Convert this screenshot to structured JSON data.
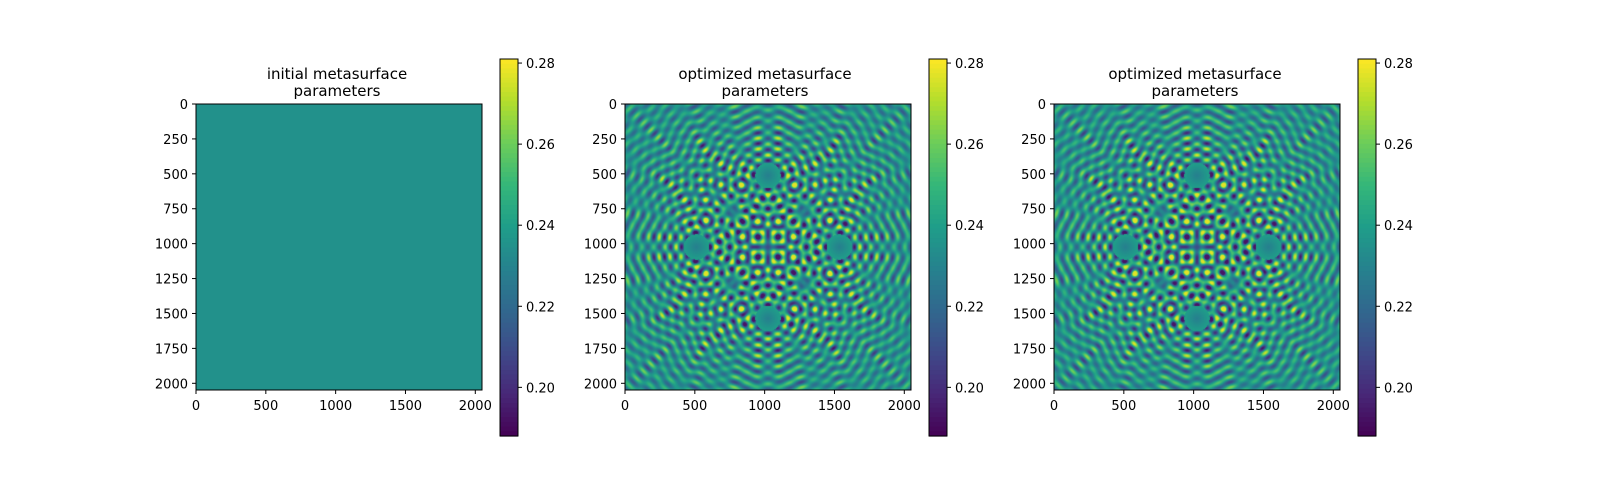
{
  "chart_data": [
    {
      "type": "heatmap",
      "title": "initial metasurface\nparameters",
      "xlabel": "",
      "ylabel": "",
      "xticks": [
        "0",
        "500",
        "1000",
        "1500",
        "2000"
      ],
      "yticks": [
        "0",
        "250",
        "500",
        "750",
        "1000",
        "1250",
        "1500",
        "1750",
        "2000"
      ],
      "xlim": [
        0,
        2048
      ],
      "ylim": [
        2048,
        0
      ],
      "colormap": "viridis",
      "colorbar": {
        "ticks": [
          "0.20",
          "0.22",
          "0.24",
          "0.26",
          "0.28"
        ],
        "range": [
          0.188,
          0.281
        ]
      },
      "pattern": "uniform",
      "uniform_value": 0.235
    },
    {
      "type": "heatmap",
      "title": "optimized metasurface\nparameters",
      "xlabel": "",
      "ylabel": "",
      "xticks": [
        "0",
        "500",
        "1000",
        "1500",
        "2000"
      ],
      "yticks": [
        "0",
        "250",
        "500",
        "750",
        "1000",
        "1250",
        "1500",
        "1750",
        "2000"
      ],
      "xlim": [
        0,
        2048
      ],
      "ylim": [
        2048,
        0
      ],
      "colormap": "viridis",
      "colorbar": {
        "ticks": [
          "0.20",
          "0.22",
          "0.24",
          "0.26",
          "0.28"
        ],
        "range": [
          0.188,
          0.281
        ]
      },
      "pattern": "concentric rings",
      "ring_centers": [
        [
          1024,
          512
        ],
        [
          512,
          1024
        ],
        [
          1536,
          1024
        ],
        [
          1024,
          1536
        ],
        [
          1024,
          1024
        ],
        [
          768,
          768
        ],
        [
          1280,
          768
        ],
        [
          768,
          1280
        ],
        [
          1280,
          1280
        ]
      ]
    },
    {
      "type": "heatmap",
      "title": "optimized metasurface\nparameters",
      "xlabel": "",
      "ylabel": "",
      "xticks": [
        "0",
        "500",
        "1000",
        "1500",
        "2000"
      ],
      "yticks": [
        "0",
        "250",
        "500",
        "750",
        "1000",
        "1250",
        "1500",
        "1750",
        "2000"
      ],
      "xlim": [
        0,
        2048
      ],
      "ylim": [
        2048,
        0
      ],
      "colormap": "viridis",
      "colorbar": {
        "ticks": [
          "0.20",
          "0.22",
          "0.24",
          "0.26",
          "0.28"
        ],
        "range": [
          0.188,
          0.281
        ]
      },
      "pattern": "concentric rings",
      "ring_centers": [
        [
          1024,
          512
        ],
        [
          512,
          1024
        ],
        [
          1536,
          1024
        ],
        [
          1024,
          1536
        ],
        [
          1024,
          1024
        ],
        [
          768,
          768
        ],
        [
          1280,
          768
        ],
        [
          768,
          1280
        ],
        [
          1280,
          1280
        ]
      ]
    }
  ]
}
